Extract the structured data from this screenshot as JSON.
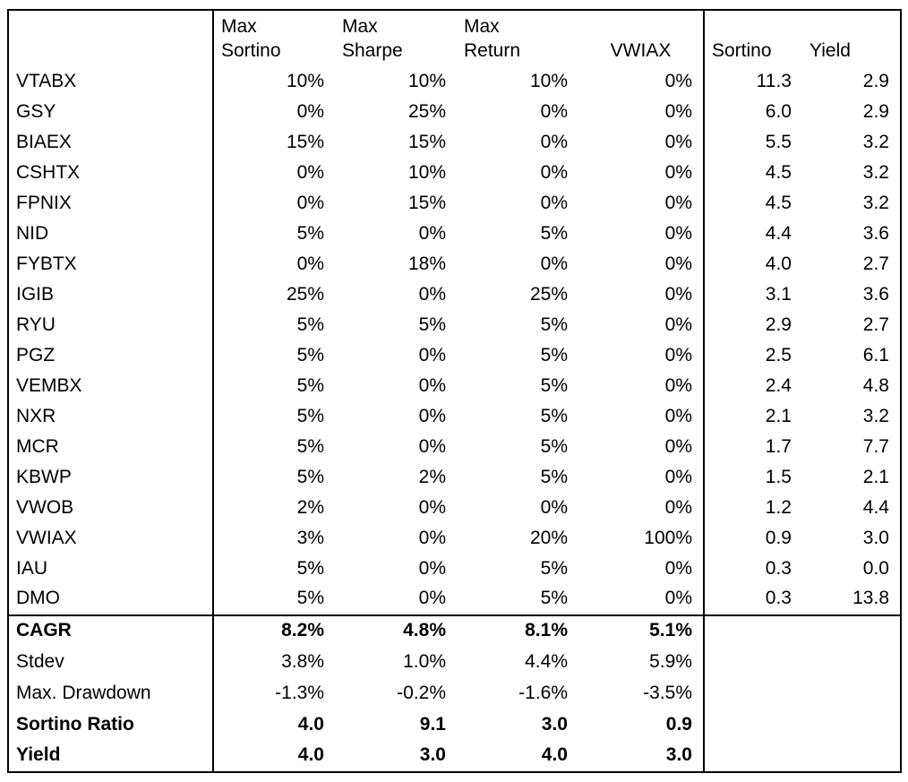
{
  "chart_data": {
    "type": "table",
    "title": "",
    "columns": [
      "",
      "Max Sortino",
      "Max Sharpe",
      "Max Return",
      "VWIAX",
      "Sortino",
      "Yield"
    ],
    "rows": [
      [
        "VTABX",
        "10%",
        "10%",
        "10%",
        "0%",
        "11.3",
        "2.9"
      ],
      [
        "GSY",
        "0%",
        "25%",
        "0%",
        "0%",
        "6.0",
        "2.9"
      ],
      [
        "BIAEX",
        "15%",
        "15%",
        "0%",
        "0%",
        "5.5",
        "3.2"
      ],
      [
        "CSHTX",
        "0%",
        "10%",
        "0%",
        "0%",
        "4.5",
        "3.2"
      ],
      [
        "FPNIX",
        "0%",
        "15%",
        "0%",
        "0%",
        "4.5",
        "3.2"
      ],
      [
        "NID",
        "5%",
        "0%",
        "5%",
        "0%",
        "4.4",
        "3.6"
      ],
      [
        "FYBTX",
        "0%",
        "18%",
        "0%",
        "0%",
        "4.0",
        "2.7"
      ],
      [
        "IGIB",
        "25%",
        "0%",
        "25%",
        "0%",
        "3.1",
        "3.6"
      ],
      [
        "RYU",
        "5%",
        "5%",
        "5%",
        "0%",
        "2.9",
        "2.7"
      ],
      [
        "PGZ",
        "5%",
        "0%",
        "5%",
        "0%",
        "2.5",
        "6.1"
      ],
      [
        "VEMBX",
        "5%",
        "0%",
        "5%",
        "0%",
        "2.4",
        "4.8"
      ],
      [
        "NXR",
        "5%",
        "0%",
        "5%",
        "0%",
        "2.1",
        "3.2"
      ],
      [
        "MCR",
        "5%",
        "0%",
        "5%",
        "0%",
        "1.7",
        "7.7"
      ],
      [
        "KBWP",
        "5%",
        "2%",
        "5%",
        "0%",
        "1.5",
        "2.1"
      ],
      [
        "VWOB",
        "2%",
        "0%",
        "0%",
        "0%",
        "1.2",
        "4.4"
      ],
      [
        "VWIAX",
        "3%",
        "0%",
        "20%",
        "100%",
        "0.9",
        "3.0"
      ],
      [
        "IAU",
        "5%",
        "0%",
        "5%",
        "0%",
        "0.3",
        "0.0"
      ],
      [
        "DMO",
        "5%",
        "0%",
        "5%",
        "0%",
        "0.3",
        "13.8"
      ]
    ],
    "summary_rows": [
      {
        "label": "CAGR",
        "bold": true,
        "values": [
          "8.2%",
          "4.8%",
          "8.1%",
          "5.1%",
          "",
          ""
        ]
      },
      {
        "label": "Stdev",
        "bold": false,
        "values": [
          "3.8%",
          "1.0%",
          "4.4%",
          "5.9%",
          "",
          ""
        ]
      },
      {
        "label": "Max. Drawdown",
        "bold": false,
        "values": [
          "-1.3%",
          "-0.2%",
          "-1.6%",
          "-3.5%",
          "",
          ""
        ]
      },
      {
        "label": "Sortino Ratio",
        "bold": true,
        "values": [
          "4.0",
          "9.1",
          "3.0",
          "0.9",
          "",
          ""
        ]
      },
      {
        "label": "Yield",
        "bold": true,
        "values": [
          "4.0",
          "3.0",
          "4.0",
          "3.0",
          "",
          ""
        ]
      }
    ],
    "layout": {
      "grid": "off",
      "header_lines": 2,
      "divider_after_columns": [
        0,
        4
      ]
    }
  },
  "table": {
    "headers": {
      "row1": [
        "",
        "Max",
        "Max",
        "Max",
        "",
        "",
        ""
      ],
      "row2": [
        "",
        "Sortino",
        "Sharpe",
        "Return",
        "VWIAX",
        "Sortino",
        "Yield"
      ]
    },
    "colors": {
      "border": "#000000",
      "text": "#000000",
      "background": "#ffffff"
    }
  }
}
